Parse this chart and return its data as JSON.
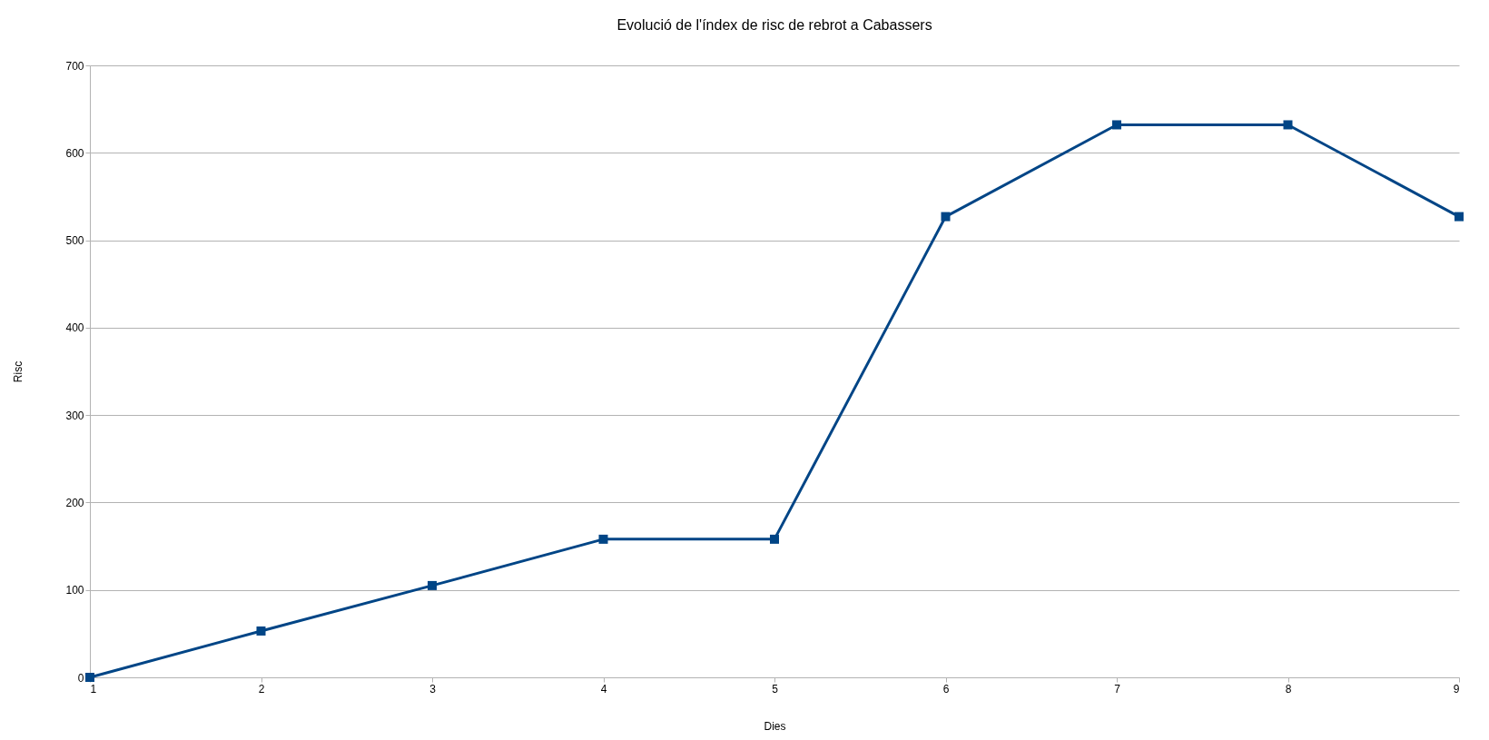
{
  "chart_data": {
    "type": "line",
    "title": "Evolució de l'índex de risc de rebrot a Cabassers",
    "xlabel": "Dies",
    "ylabel": "Risc",
    "x": [
      1,
      2,
      3,
      4,
      5,
      6,
      7,
      8,
      9
    ],
    "series": [
      {
        "color": "#004586",
        "values": [
          0,
          53,
          105,
          158,
          158,
          527,
          632,
          632,
          527
        ]
      }
    ],
    "xlim": [
      1,
      9
    ],
    "xticks": [
      1,
      2,
      3,
      4,
      5,
      6,
      7,
      8,
      9
    ],
    "ylim": [
      0,
      700
    ],
    "yticks": [
      0,
      100,
      200,
      300,
      400,
      500,
      600,
      700
    ],
    "grid": "y",
    "marker": "square",
    "line_style": "solid",
    "legend": false
  }
}
